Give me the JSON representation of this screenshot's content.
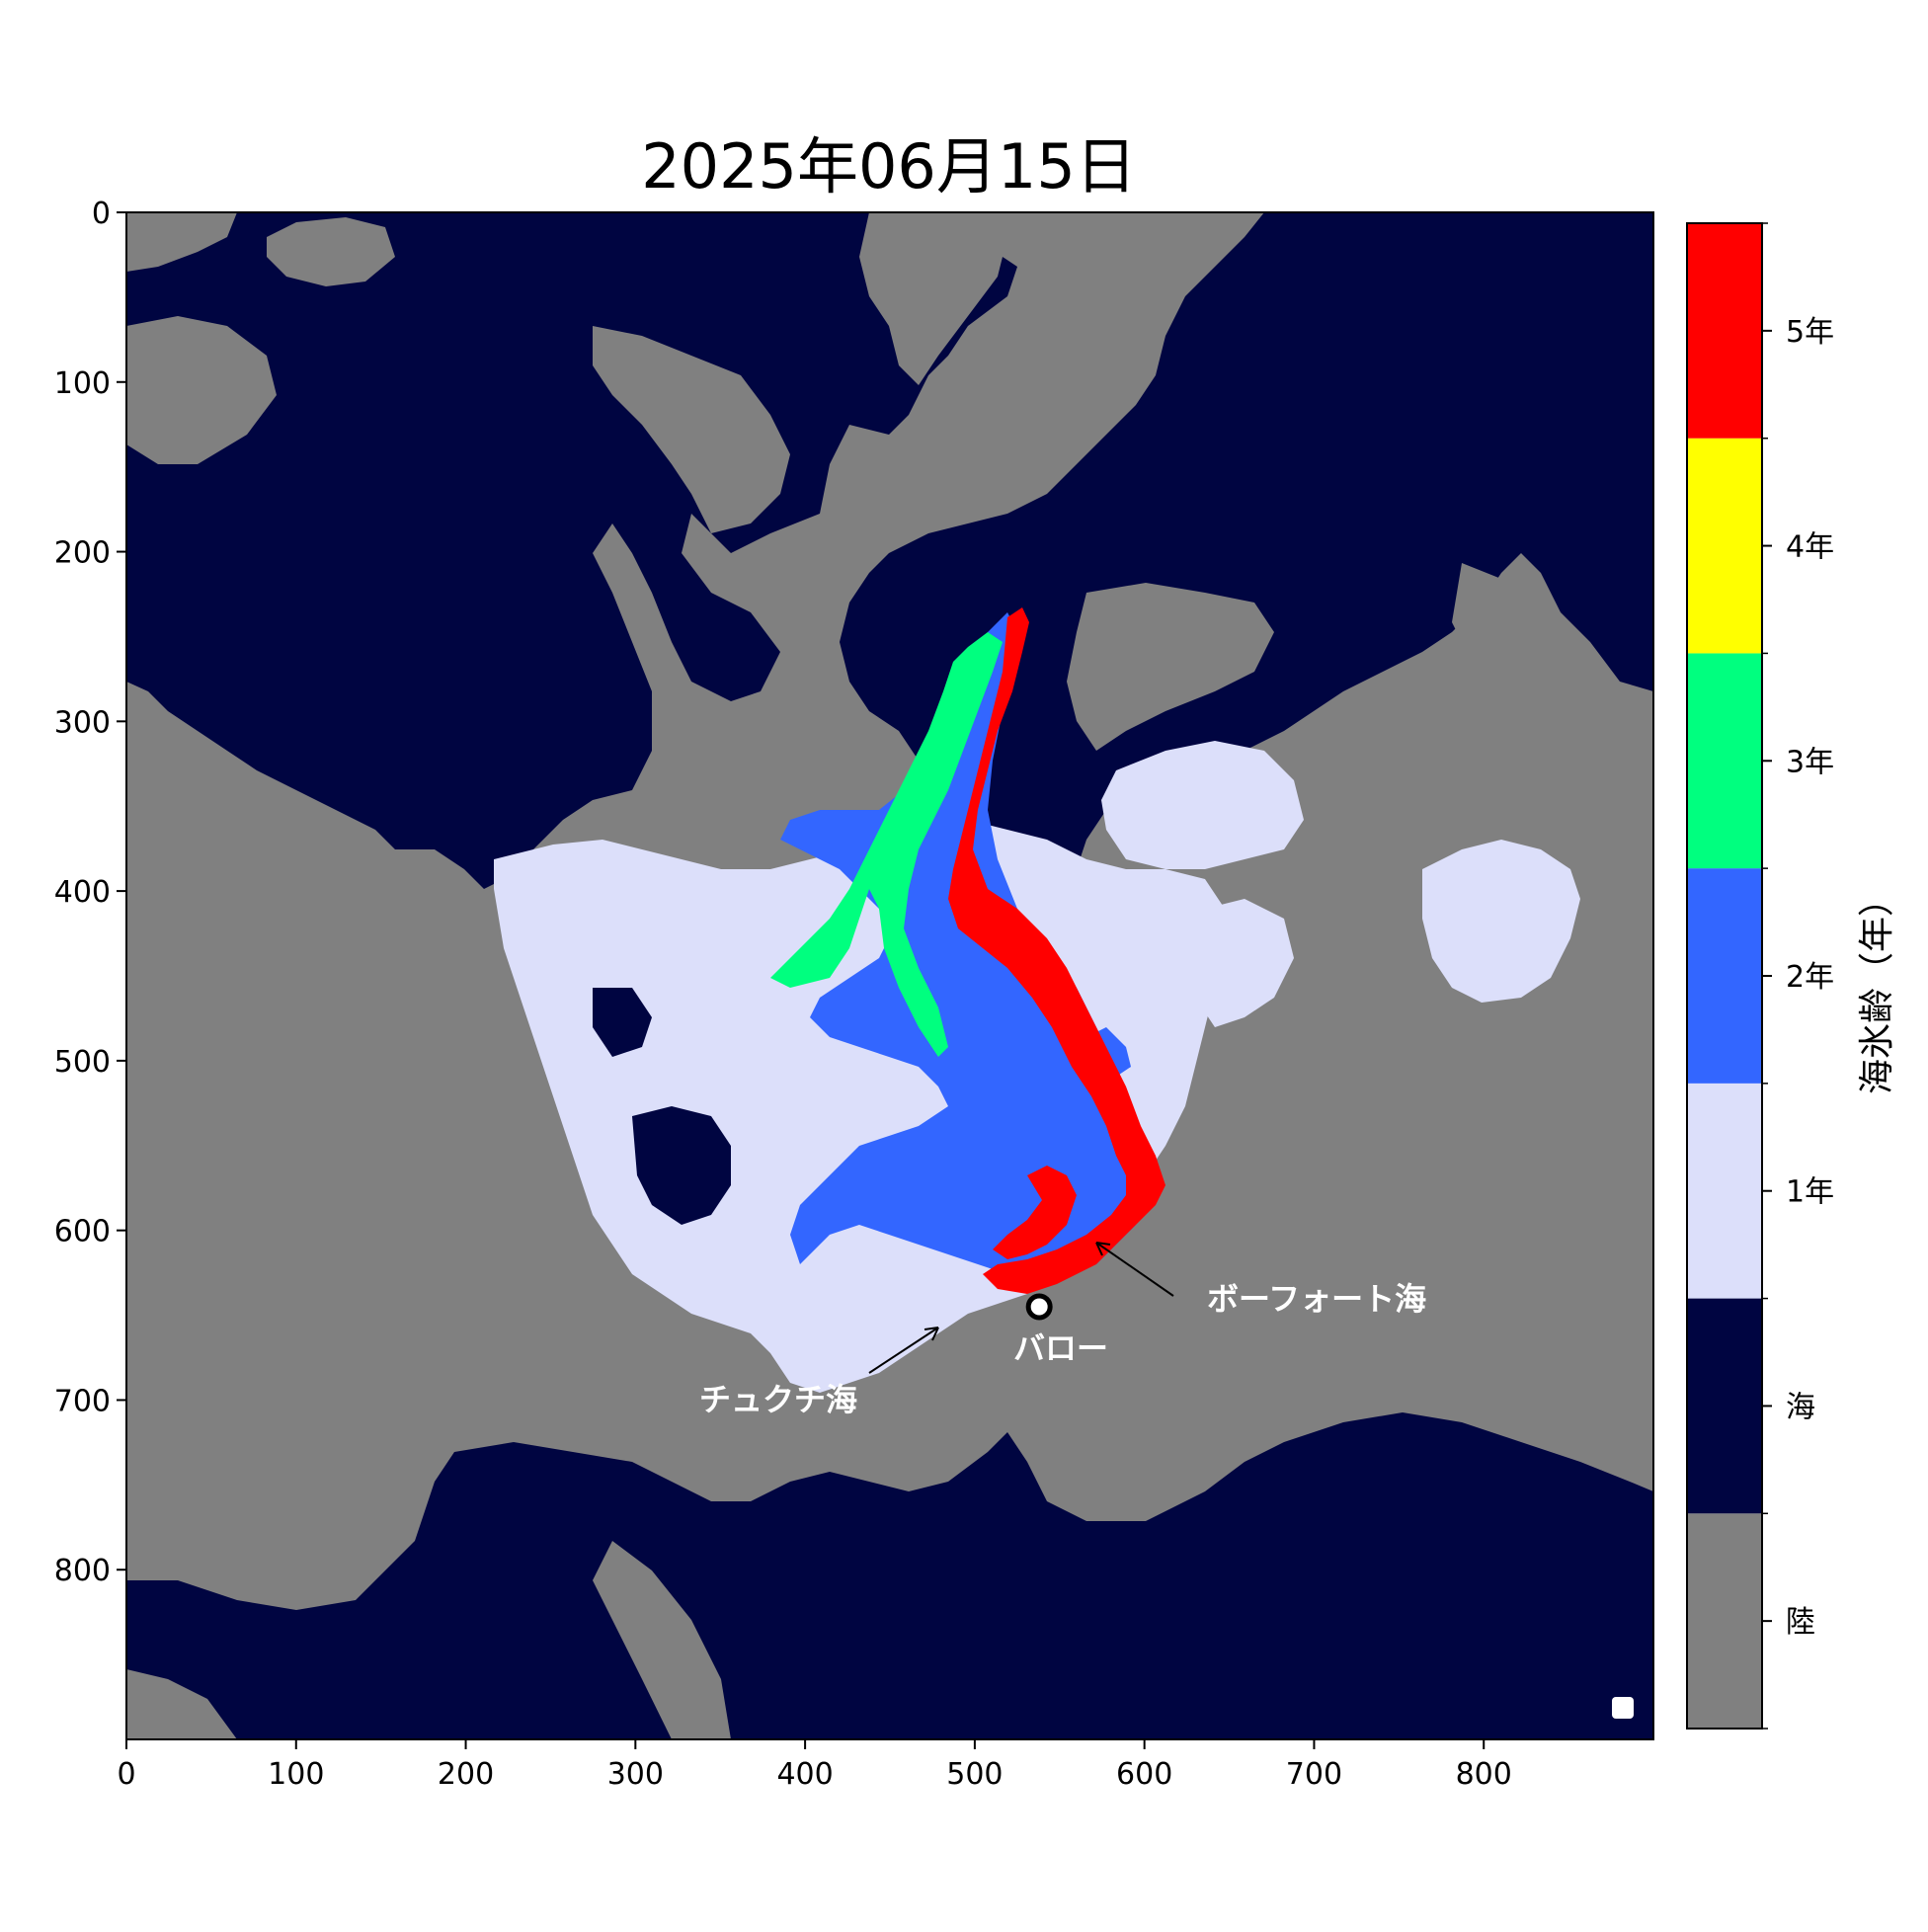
{
  "title": "2025年06月15日",
  "colors": {
    "land": "#808080",
    "sea": "#000541",
    "ice1": "#dcdffa",
    "ice2": "#3366ff",
    "ice3": "#00ff7f",
    "ice4": "#ffff00",
    "ice5": "#ff0000",
    "annotation": "#ffffff"
  },
  "axes": {
    "x_ticks": [
      "0",
      "100",
      "200",
      "300",
      "400",
      "500",
      "600",
      "700",
      "800"
    ],
    "y_ticks": [
      "0",
      "100",
      "200",
      "300",
      "400",
      "500",
      "600",
      "700",
      "800"
    ],
    "xlim": [
      0,
      900
    ],
    "ylim": [
      900,
      0
    ]
  },
  "colorbar": {
    "label": "海氷齢（年）",
    "categories": [
      {
        "label": "陸",
        "color": "#808080"
      },
      {
        "label": "海",
        "color": "#000541"
      },
      {
        "label": "1年",
        "color": "#dcdffa"
      },
      {
        "label": "2年",
        "color": "#3366ff"
      },
      {
        "label": "3年",
        "color": "#00ff7f"
      },
      {
        "label": "4年",
        "color": "#ffff00"
      },
      {
        "label": "5年",
        "color": "#ff0000"
      }
    ]
  },
  "annotations": {
    "beaufort": "ボーフォート海",
    "barrow": "バロー",
    "chukchi": "チュクチ海"
  },
  "markers": {
    "barrow": {
      "x": 538,
      "y": 645
    }
  }
}
